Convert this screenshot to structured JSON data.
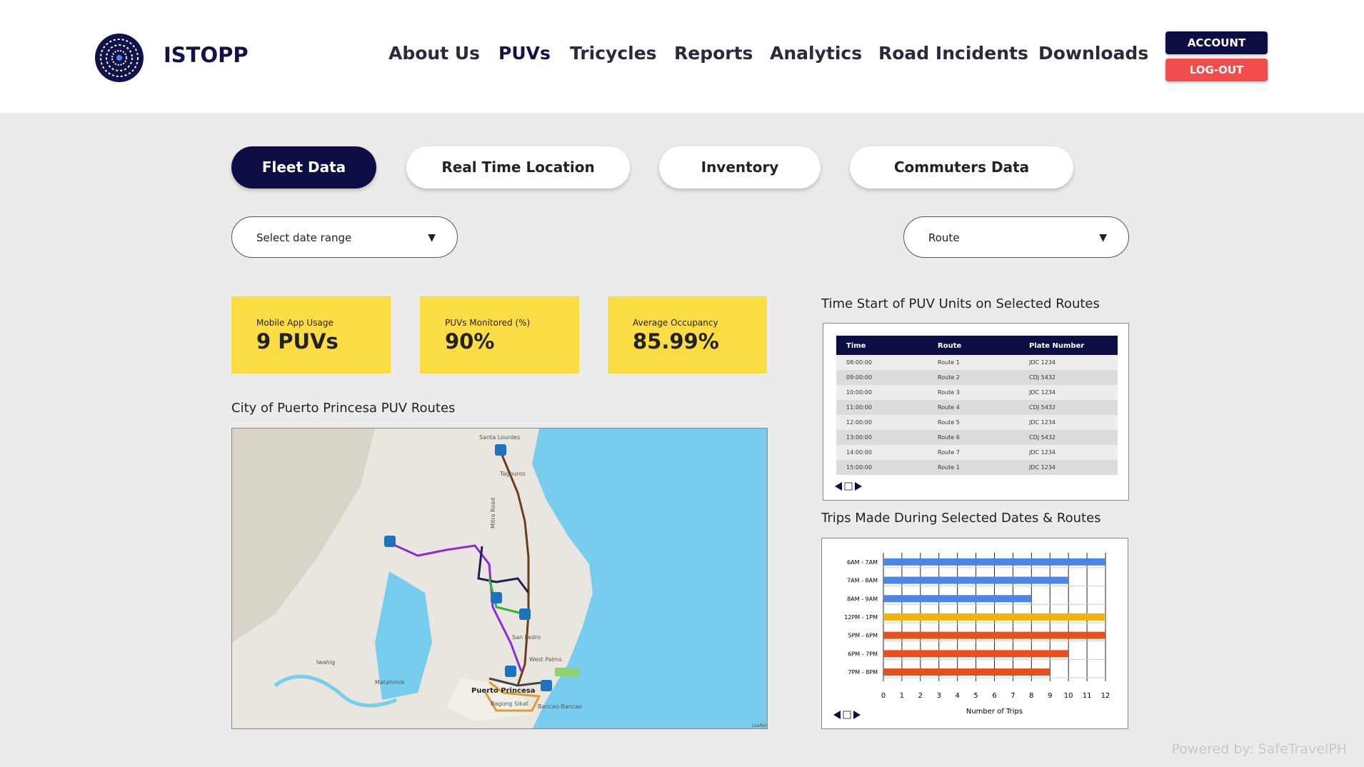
{
  "header": {
    "brand": "ISTOPP",
    "nav": [
      "About Us",
      "PUVs",
      "Tricycles",
      "Reports",
      "Analytics",
      "Road Incidents",
      "Downloads"
    ],
    "account": "ACCOUNT",
    "logout": "LOG-OUT"
  },
  "tabs": [
    "Fleet Data",
    "Real Time Location",
    "Inventory",
    "Commuters Data"
  ],
  "filters": {
    "date": "Select date range",
    "route": "Route"
  },
  "kpis": [
    {
      "label": "Mobile App Usage",
      "value": "9 PUVs"
    },
    {
      "label": "PUVs Monitored (%)",
      "value": "90%"
    },
    {
      "label": "Average Occupancy",
      "value": "85.99%"
    }
  ],
  "map": {
    "title": "City of Puerto Princesa PUV Routes",
    "places": [
      "Santa Lourdes",
      "Tagburos",
      "Mitra Road",
      "San Pedro",
      "West Palms",
      "Puerto Princesa",
      "Bagong Sikat",
      "Bancao-Bancao",
      "Matahimik",
      "Iwahig"
    ],
    "attribution": "Leaflet"
  },
  "table": {
    "title": "Time Start of PUV Units on Selected Routes",
    "columns": [
      "Time",
      "Route",
      "Plate Number"
    ],
    "rows": [
      [
        "08:00:00",
        "Route 1",
        "JDC 1234"
      ],
      [
        "09:00:00",
        "Route 2",
        "CDJ 5432"
      ],
      [
        "10:00:00",
        "Route 3",
        "JDC 1234"
      ],
      [
        "11:00:00",
        "Route 4",
        "CDJ 5432"
      ],
      [
        "12:00:00",
        "Route 5",
        "JDC 1234"
      ],
      [
        "13:00:00",
        "Route 6",
        "CDJ 5432"
      ],
      [
        "14:00:00",
        "Route 7",
        "JDC 1234"
      ],
      [
        "15:00:00",
        "Route 1",
        "JDC 1234"
      ]
    ]
  },
  "chart_data": {
    "type": "barh",
    "title": "Trips Made During Selected Dates & Routes",
    "categories": [
      "6AM - 7AM",
      "7AM - 8AM",
      "8AM - 9AM",
      "12PM - 1PM",
      "5PM - 6PM",
      "6PM - 7PM",
      "7PM - 8PM"
    ],
    "values": [
      12,
      10,
      8,
      12,
      12,
      10,
      9
    ],
    "colors": [
      "#4a86e8",
      "#4a86e8",
      "#4a86e8",
      "#f1b40f",
      "#e8501b",
      "#e8501b",
      "#e8501b"
    ],
    "xlim": [
      0,
      12
    ],
    "xticks": [
      0,
      1,
      2,
      3,
      4,
      5,
      6,
      7,
      8,
      9,
      10,
      11,
      12
    ],
    "xlabel": "Number of Trips",
    "grid": true
  },
  "footer": "Powered by: SafeTravelPH"
}
